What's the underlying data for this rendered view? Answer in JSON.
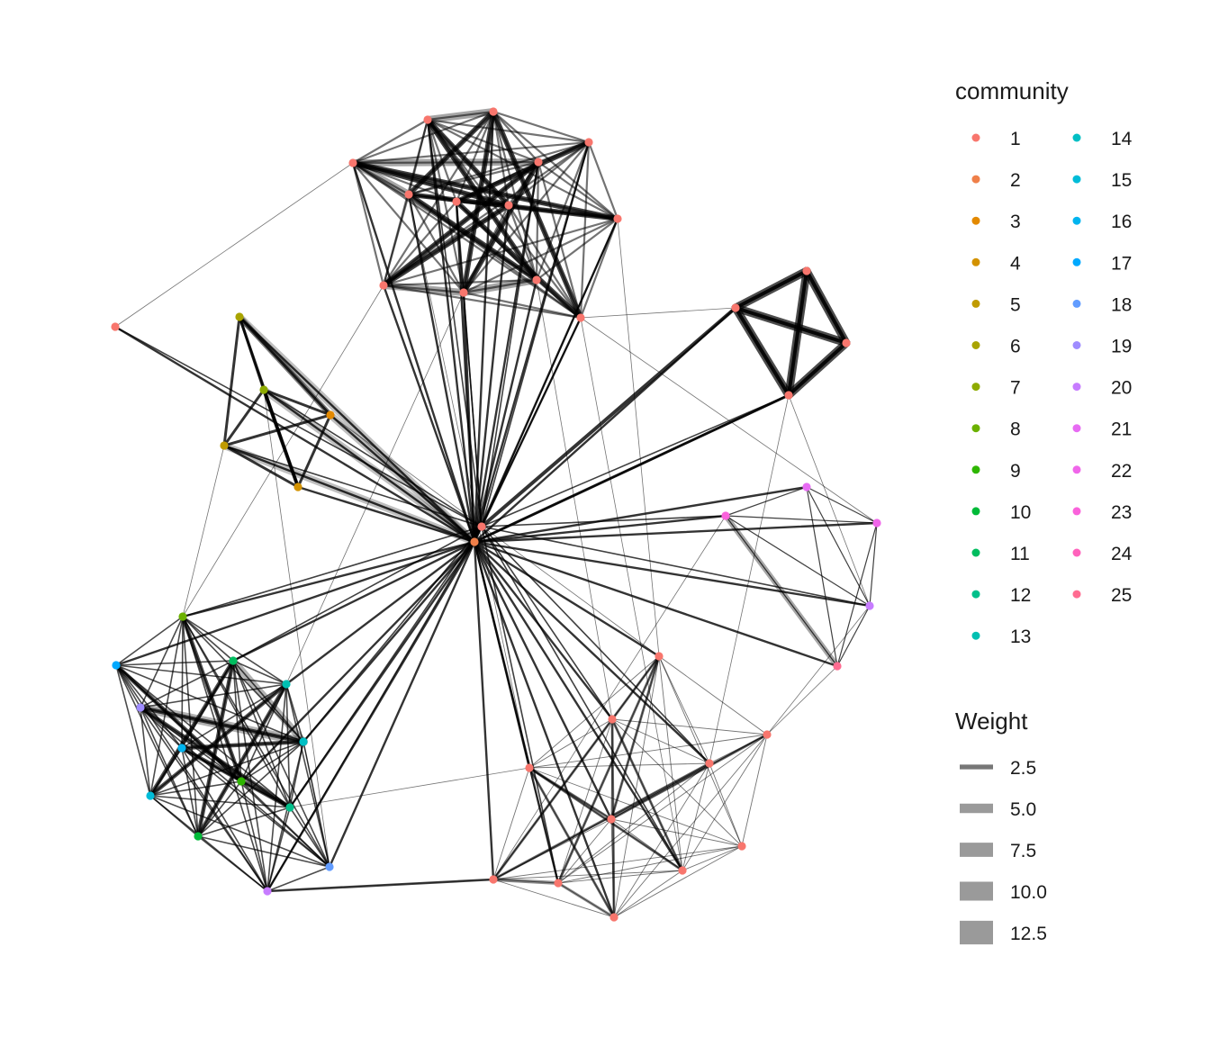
{
  "community_legend": {
    "title": "community",
    "entries": [
      {
        "label": "1",
        "color": "#F8766D"
      },
      {
        "label": "2",
        "color": "#EF7F49"
      },
      {
        "label": "3",
        "color": "#E38900"
      },
      {
        "label": "4",
        "color": "#D39200"
      },
      {
        "label": "5",
        "color": "#C09B00"
      },
      {
        "label": "6",
        "color": "#A9A400"
      },
      {
        "label": "7",
        "color": "#8EAB00"
      },
      {
        "label": "8",
        "color": "#6BB100"
      },
      {
        "label": "9",
        "color": "#2EB600"
      },
      {
        "label": "10",
        "color": "#00BA38"
      },
      {
        "label": "11",
        "color": "#00BD5F"
      },
      {
        "label": "12",
        "color": "#00C08B"
      },
      {
        "label": "13",
        "color": "#00C0B2"
      },
      {
        "label": "14",
        "color": "#00BFC4"
      },
      {
        "label": "15",
        "color": "#00BCD8"
      },
      {
        "label": "16",
        "color": "#00B4EF"
      },
      {
        "label": "17",
        "color": "#00A9FF"
      },
      {
        "label": "18",
        "color": "#619CFF"
      },
      {
        "label": "19",
        "color": "#9F8CFF"
      },
      {
        "label": "20",
        "color": "#C77CFF"
      },
      {
        "label": "21",
        "color": "#E76BF3"
      },
      {
        "label": "22",
        "color": "#F066EA"
      },
      {
        "label": "23",
        "color": "#FA62DB"
      },
      {
        "label": "24",
        "color": "#FF62BC"
      },
      {
        "label": "25",
        "color": "#FF6C91"
      }
    ]
  },
  "weight_legend": {
    "title": "Weight",
    "entries": [
      {
        "label": "2.5",
        "value": 2.5
      },
      {
        "label": "5.0",
        "value": 5.0
      },
      {
        "label": "7.5",
        "value": 7.5
      },
      {
        "label": "10.0",
        "value": 10.0
      },
      {
        "label": "12.5",
        "value": 12.5
      }
    ]
  }
}
